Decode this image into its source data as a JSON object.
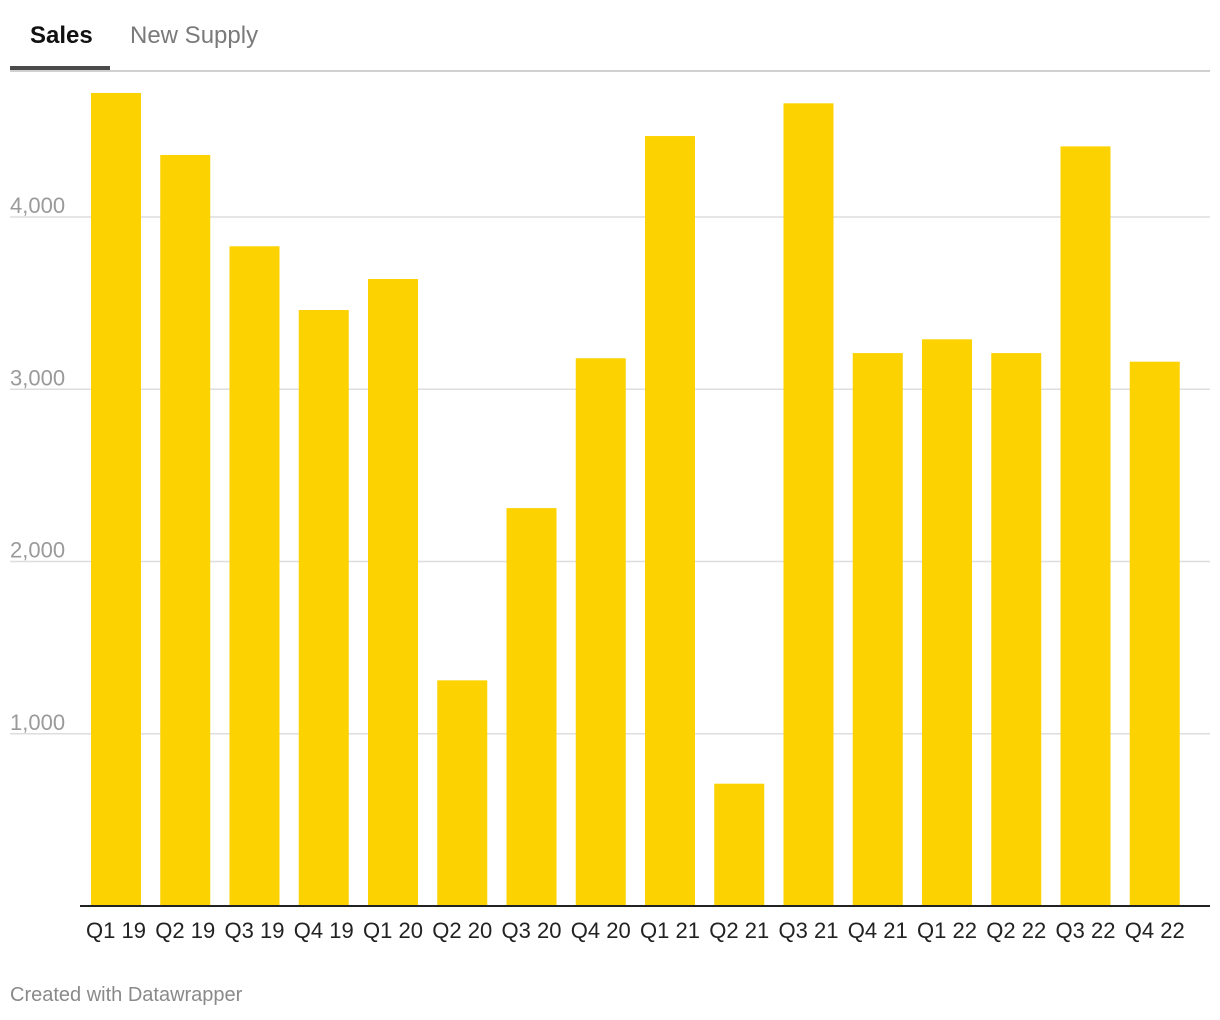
{
  "tabs": [
    {
      "label": "Sales",
      "active": true
    },
    {
      "label": "New Supply",
      "active": false
    }
  ],
  "footer": "Created with Datawrapper",
  "colors": {
    "bar": "#FCD200",
    "gridline": "#dedede",
    "tick_label": "#9a9a9a",
    "axis": "#222222"
  },
  "chart_data": {
    "type": "bar",
    "title": "",
    "xlabel": "",
    "ylabel": "",
    "ylim": [
      0,
      4800
    ],
    "yticks": [
      1000,
      2000,
      3000,
      4000
    ],
    "ytick_labels": [
      "1,000",
      "2,000",
      "3,000",
      "4,000"
    ],
    "grid": true,
    "legend": "none",
    "categories": [
      "Q1 19",
      "Q2 19",
      "Q3 19",
      "Q4 19",
      "Q1 20",
      "Q2 20",
      "Q3 20",
      "Q4 20",
      "Q1 21",
      "Q2 21",
      "Q3 21",
      "Q4 21",
      "Q1 22",
      "Q2 22",
      "Q3 22",
      "Q4 22"
    ],
    "values": [
      4720,
      4360,
      3830,
      3460,
      3640,
      1310,
      2310,
      3180,
      4470,
      710,
      4660,
      3210,
      3290,
      3210,
      4410,
      3160
    ]
  }
}
